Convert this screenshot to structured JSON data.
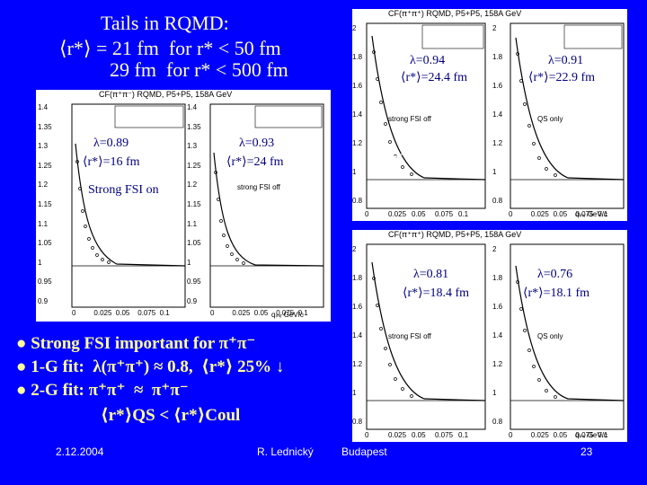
{
  "title": {
    "line1": "Tails in RQMD:",
    "line2": "⟨r*⟩ = 21 fm  for r* < 50 fm",
    "line3": "29 fm  for r* < 500 fm"
  },
  "panels": {
    "pipm": {
      "header": "CF(π⁺π⁻) RQMD, P5+P5, 158A GeV",
      "left": {
        "lambda": "λ=0.89",
        "rstar": "⟨r*⟩=16 fm",
        "label": "Strong FSI on",
        "yticks": [
          "1.4",
          "1.35",
          "1.3",
          "1.25",
          "1.2",
          "1.15",
          "1.1",
          "1.05",
          "1",
          "0.95",
          "0.9"
        ]
      },
      "right": {
        "lambda": "λ=0.93",
        "rstar": "⟨r*⟩=24 fm",
        "label": "strong FSI off",
        "yticks": [
          "1.4",
          "1.35",
          "1.3",
          "1.25",
          "1.2",
          "1.15",
          "1.1",
          "1.05",
          "1",
          "0.95",
          "0.9"
        ]
      },
      "particles": "π⁺π⁻",
      "xticks": [
        "0",
        "0.025",
        "0.05",
        "0.075",
        "0.1"
      ],
      "xlabel": "qᵢₙᵥ  GeV/c"
    },
    "pipp": {
      "header": "CF(π⁺π⁺) RQMD, P5+P5, 158A GeV",
      "left": {
        "lambda": "λ=0.94",
        "rstar": "⟨r*⟩=24.4 fm",
        "label": "strong FSI off",
        "yticks": [
          "2",
          "1.8",
          "1.6",
          "1.4",
          "1.2",
          "1",
          "0.8"
        ]
      },
      "compare": ">",
      "right": {
        "lambda": "λ=0.91",
        "rstar": "⟨r*⟩=22.9 fm",
        "label": "QS only",
        "yticks": [
          "2",
          "1.8",
          "1.6",
          "1.4",
          "1.2",
          "1",
          "0.8"
        ]
      },
      "particles": "π⁺π⁺",
      "xticks": [
        "0",
        "0.025",
        "0.05",
        "0.075",
        "0.1"
      ],
      "xlabel": "qᵢₙᵥ  GeV/c"
    },
    "pipp2": {
      "header": "CF(π⁺π⁺) RQMD, P5+P5, 158A GeV",
      "left": {
        "lambda": "λ=0.81",
        "rstar": "⟨r*⟩=18.4 fm",
        "label": "strong FSI off",
        "yticks": [
          "2",
          "1.8",
          "1.6",
          "1.4",
          "1.2",
          "1",
          "0.8"
        ]
      },
      "right": {
        "lambda": "λ=0.76",
        "rstar": "⟨r*⟩=18.1 fm",
        "label": "QS only",
        "yticks": [
          "2",
          "1.8",
          "1.6",
          "1.4",
          "1.2",
          "1",
          "0.8"
        ]
      },
      "xticks": [
        "0",
        "0.025",
        "0.05",
        "0.075",
        "0.1"
      ],
      "xlabel": "qᵢₙᵥ  GeV/c"
    }
  },
  "bullets": {
    "b1": "● Strong FSI important for π⁺π⁻",
    "b2": "● 1-G fit:  λ(π⁺π⁺) ≈ 0.8,  ⟨r*⟩ 25% ↓",
    "b3": "● 2-G fit: π⁺π⁺  ≈  π⁺π⁻",
    "b4": "⟨r*⟩QS < ⟨r*⟩Coul"
  },
  "footer": {
    "date": "2.12.2004",
    "author": "R. Lednický",
    "place": "Budapest",
    "page": "23"
  }
}
